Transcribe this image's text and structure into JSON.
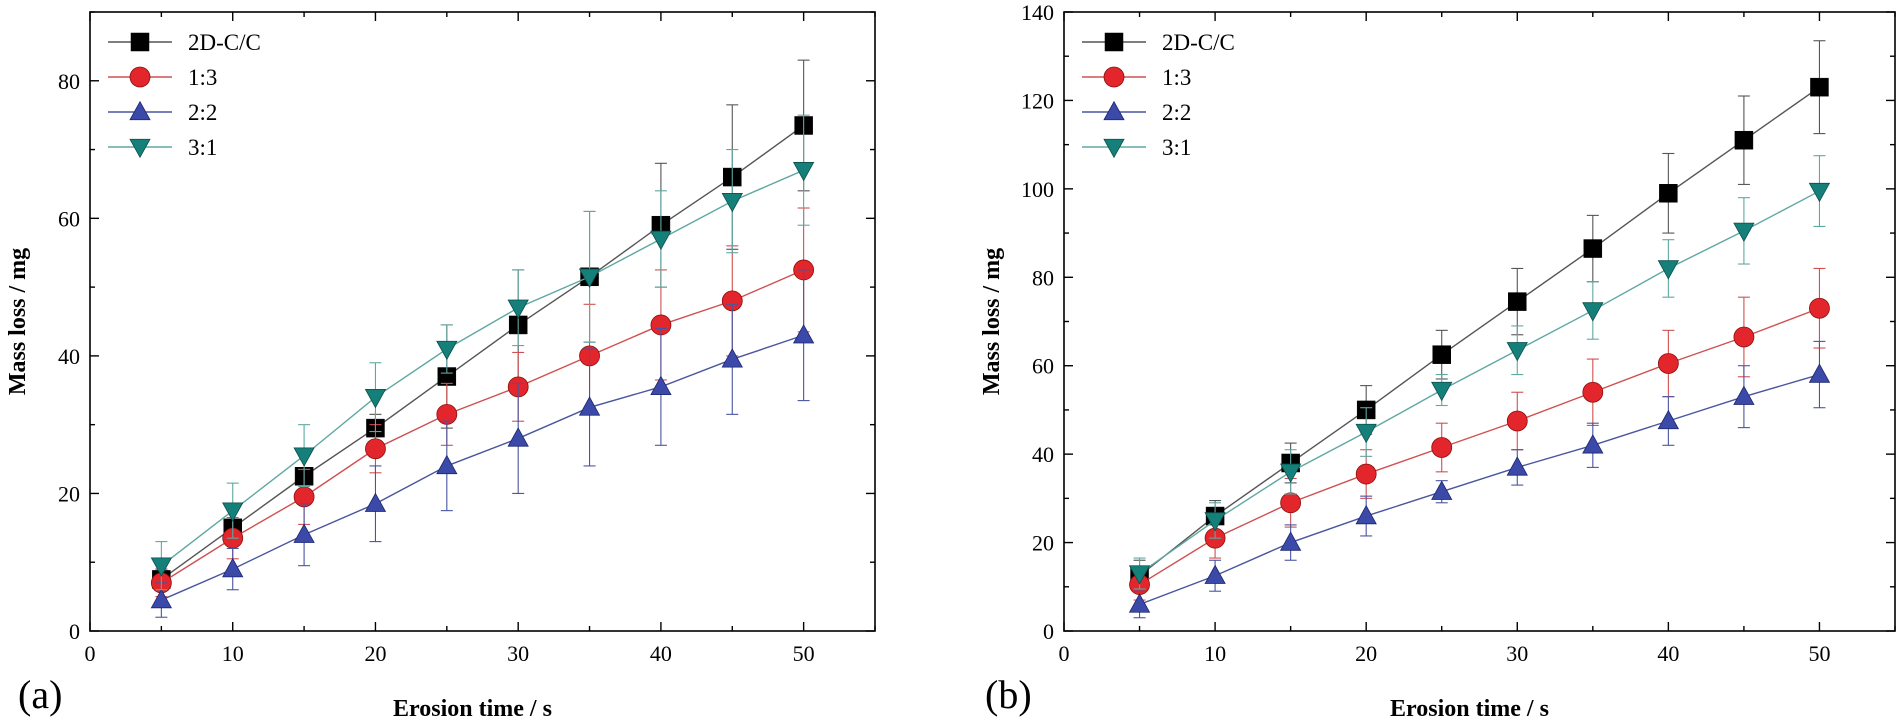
{
  "chart_data": [
    {
      "type": "line",
      "panel_label": "(a)",
      "xlabel": "Erosion time / s",
      "ylabel": "Mass loss / mg",
      "xlim": [
        0,
        55
      ],
      "ylim": [
        0,
        90
      ],
      "xticks": [
        0,
        10,
        20,
        30,
        40,
        50
      ],
      "yticks": [
        0,
        20,
        40,
        60,
        80
      ],
      "x": [
        5,
        10,
        15,
        20,
        25,
        30,
        35,
        40,
        45,
        50
      ],
      "legend_position": "top-left",
      "series": [
        {
          "name": "2D-C/C",
          "color": "#000000",
          "marker": "square",
          "line_color": "#555555",
          "values": [
            7.5,
            15,
            22.5,
            29.5,
            37,
            44.5,
            51.5,
            59,
            66,
            73.5
          ],
          "errors": [
            1.5,
            2.5,
            1.0,
            2.0,
            7.5,
            8.0,
            9.5,
            9.0,
            10.5,
            9.5
          ]
        },
        {
          "name": "1:3",
          "color": "#e3262b",
          "marker": "circle",
          "line_color": "#d05050",
          "values": [
            7,
            13.5,
            19.5,
            26.5,
            31.5,
            35.5,
            40,
            44.5,
            48,
            52.5
          ],
          "errors": [
            2.0,
            3.0,
            4.0,
            3.5,
            4.5,
            5.0,
            7.5,
            8.0,
            8.0,
            9.0
          ]
        },
        {
          "name": "2:2",
          "color": "#3b4aa8",
          "marker": "triangle-up",
          "line_color": "#4a55a0",
          "values": [
            4.5,
            9,
            14,
            18.5,
            24,
            28,
            32.5,
            35.5,
            39.5,
            43
          ],
          "errors": [
            2.5,
            3.0,
            4.5,
            5.5,
            6.5,
            8.0,
            8.5,
            8.5,
            8.0,
            9.5
          ]
        },
        {
          "name": "3:1",
          "color": "#157f7a",
          "marker": "triangle-down",
          "line_color": "#5fa8a2",
          "values": [
            9.5,
            17.5,
            25.5,
            34,
            41,
            47,
            51.5,
            57,
            62.5,
            67
          ],
          "errors": [
            3.5,
            4.0,
            4.5,
            5.0,
            3.5,
            5.5,
            9.5,
            7.0,
            7.5,
            8.0
          ]
        }
      ]
    },
    {
      "type": "line",
      "panel_label": "(b)",
      "xlabel": "Erosion time / s",
      "ylabel": "Mass loss / mg",
      "xlim": [
        0,
        55
      ],
      "ylim": [
        0,
        140
      ],
      "xticks": [
        0,
        10,
        20,
        30,
        40,
        50
      ],
      "yticks": [
        0,
        20,
        40,
        60,
        80,
        100,
        120,
        140
      ],
      "x": [
        5,
        10,
        15,
        20,
        25,
        30,
        35,
        40,
        45,
        50
      ],
      "legend_position": "top-left",
      "series": [
        {
          "name": "2D-C/C",
          "color": "#000000",
          "marker": "square",
          "line_color": "#555555",
          "values": [
            12.5,
            26,
            38,
            50,
            62.5,
            74.5,
            86.5,
            99,
            111,
            123
          ],
          "errors": [
            3.5,
            3.5,
            4.5,
            5.5,
            5.5,
            7.5,
            7.5,
            9.0,
            10.0,
            10.5
          ]
        },
        {
          "name": "1:3",
          "color": "#e3262b",
          "marker": "circle",
          "line_color": "#d05050",
          "values": [
            10.5,
            21,
            29,
            35.5,
            41.5,
            47.5,
            54,
            60.5,
            66.5,
            73
          ],
          "errors": [
            3.5,
            4.5,
            5.5,
            5.5,
            5.5,
            6.5,
            7.5,
            7.5,
            9.0,
            9.0
          ]
        },
        {
          "name": "2:2",
          "color": "#3b4aa8",
          "marker": "triangle-up",
          "line_color": "#4a55a0",
          "values": [
            6,
            12.5,
            20,
            26,
            31.5,
            37,
            42,
            47.5,
            53,
            58
          ],
          "errors": [
            3.0,
            3.5,
            4.0,
            4.5,
            2.5,
            4.0,
            5.0,
            5.5,
            7.0,
            7.5
          ]
        },
        {
          "name": "3:1",
          "color": "#157f7a",
          "marker": "triangle-down",
          "line_color": "#5fa8a2",
          "values": [
            13,
            25,
            36,
            45,
            54.5,
            63.5,
            72.5,
            82,
            90.5,
            99.5
          ],
          "errors": [
            3.5,
            4.0,
            5.0,
            5.5,
            3.5,
            5.5,
            6.5,
            6.5,
            7.5,
            8.0
          ]
        }
      ]
    }
  ]
}
